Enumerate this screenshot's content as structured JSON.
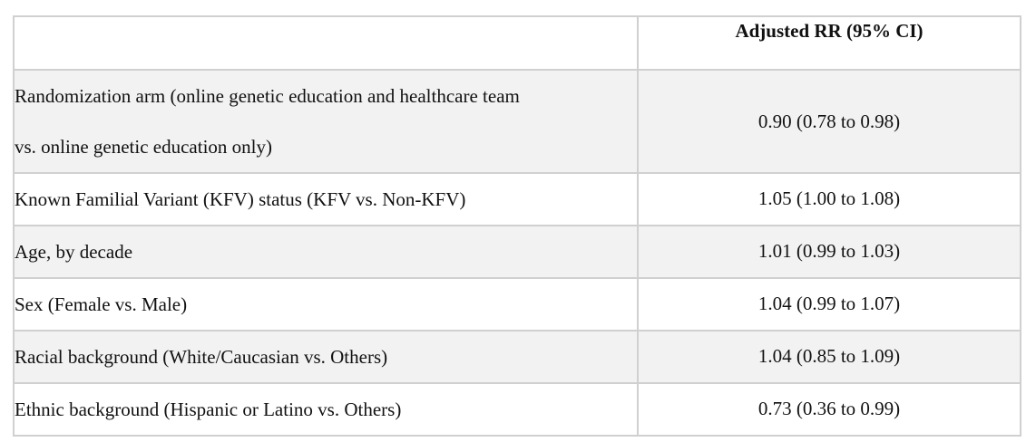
{
  "table": {
    "header": {
      "label": "",
      "value": "Adjusted RR (95% CI)"
    },
    "rows": [
      {
        "label_lines": [
          "Randomization arm (online genetic education and healthcare team",
          "vs. online genetic education only)"
        ],
        "value": "0.90 (0.78 to 0.98)"
      },
      {
        "label_lines": [
          "Known Familial Variant (KFV) status (KFV vs. Non-KFV)"
        ],
        "value": "1.05 (1.00 to 1.08)"
      },
      {
        "label_lines": [
          "Age, by decade"
        ],
        "value": "1.01 (0.99 to 1.03)"
      },
      {
        "label_lines": [
          "Sex (Female vs. Male)"
        ],
        "value": "1.04 (0.99 to 1.07)"
      },
      {
        "label_lines": [
          "Racial background (White/Caucasian vs. Others)"
        ],
        "value": "1.04 (0.85 to 1.09)"
      },
      {
        "label_lines": [
          "Ethnic background (Hispanic or Latino vs. Others)"
        ],
        "value": "0.73 (0.36 to 0.99)"
      }
    ]
  }
}
